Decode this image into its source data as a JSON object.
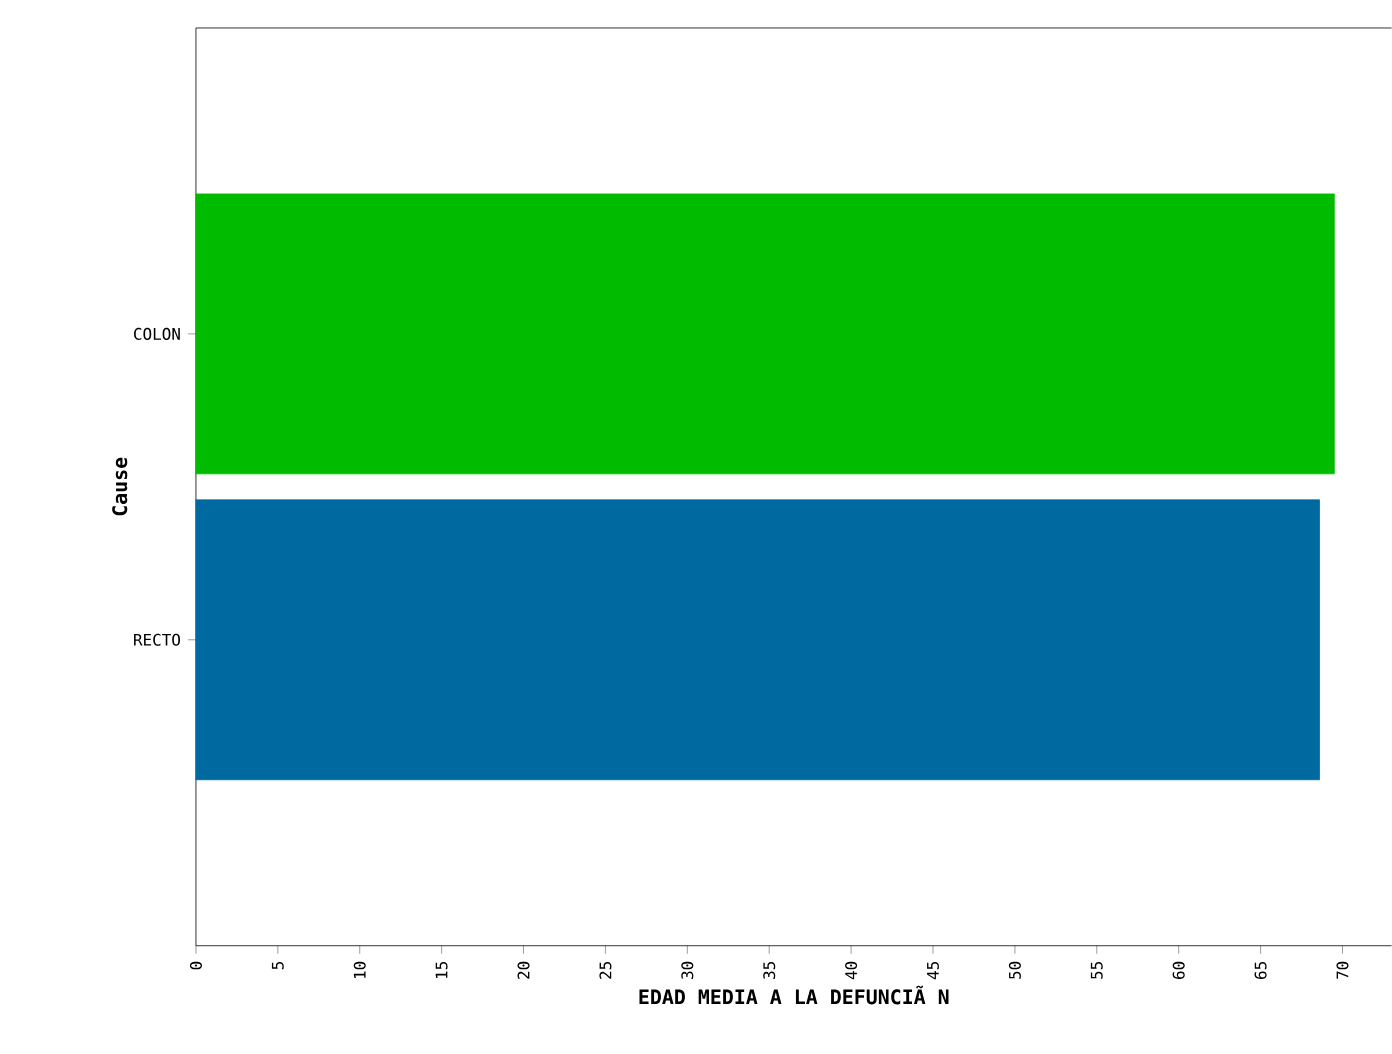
{
  "chart_data": {
    "type": "bar",
    "orientation": "horizontal",
    "xlabel": "EDAD MEDIA A LA DEFUNCIÃ N",
    "ylabel": "Cause",
    "categories": [
      "COLON",
      "RECTO"
    ],
    "values": [
      69.5,
      68.6
    ],
    "colors": [
      "#00bb00",
      "#006aa0"
    ],
    "xlim": [
      0,
      73
    ],
    "xticks": [
      0,
      5,
      10,
      15,
      20,
      25,
      30,
      35,
      40,
      45,
      50,
      55,
      60,
      65,
      70
    ],
    "grid": false
  }
}
